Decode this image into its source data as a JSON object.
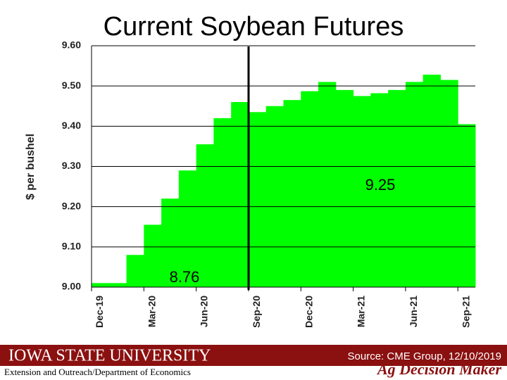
{
  "chart_data": {
    "type": "bar",
    "title": "Current Soybean Futures",
    "y_label": "$ per bushel",
    "categories": [
      "Dec-19",
      null,
      null,
      "Mar-20",
      null,
      null,
      "Jun-20",
      null,
      null,
      "Sep-20",
      null,
      null,
      "Dec-20",
      null,
      null,
      "Mar-21",
      null,
      null,
      "Jun-21",
      null,
      null,
      "Sep-21"
    ],
    "values": [
      9.01,
      9.01,
      9.08,
      9.155,
      9.22,
      9.29,
      9.355,
      9.42,
      9.46,
      9.435,
      9.45,
      9.465,
      9.487,
      9.51,
      9.49,
      9.475,
      9.482,
      9.49,
      9.51,
      9.528,
      9.515,
      9.405
    ],
    "color": "#00ff00",
    "ylim": [
      9.0,
      9.6
    ],
    "yticks": [
      {
        "value": 9.0,
        "label": "9.00"
      },
      {
        "value": 9.1,
        "label": "9.10"
      },
      {
        "value": 9.2,
        "label": "9.20"
      },
      {
        "value": 9.3,
        "label": "9.30"
      },
      {
        "value": 9.4,
        "label": "9.40"
      },
      {
        "value": 9.5,
        "label": "9.50"
      },
      {
        "value": 9.6,
        "label": "9.60"
      }
    ],
    "grid": true,
    "annotations": [
      "9.25",
      "8.76"
    ]
  },
  "footer": {
    "university": "IOWA STATE UNIVERSITY",
    "department": "Extension and Outreach/Department of Economics",
    "source": "Source: CME Group, 12/10/2019",
    "brand": "Ag Decision Maker"
  }
}
